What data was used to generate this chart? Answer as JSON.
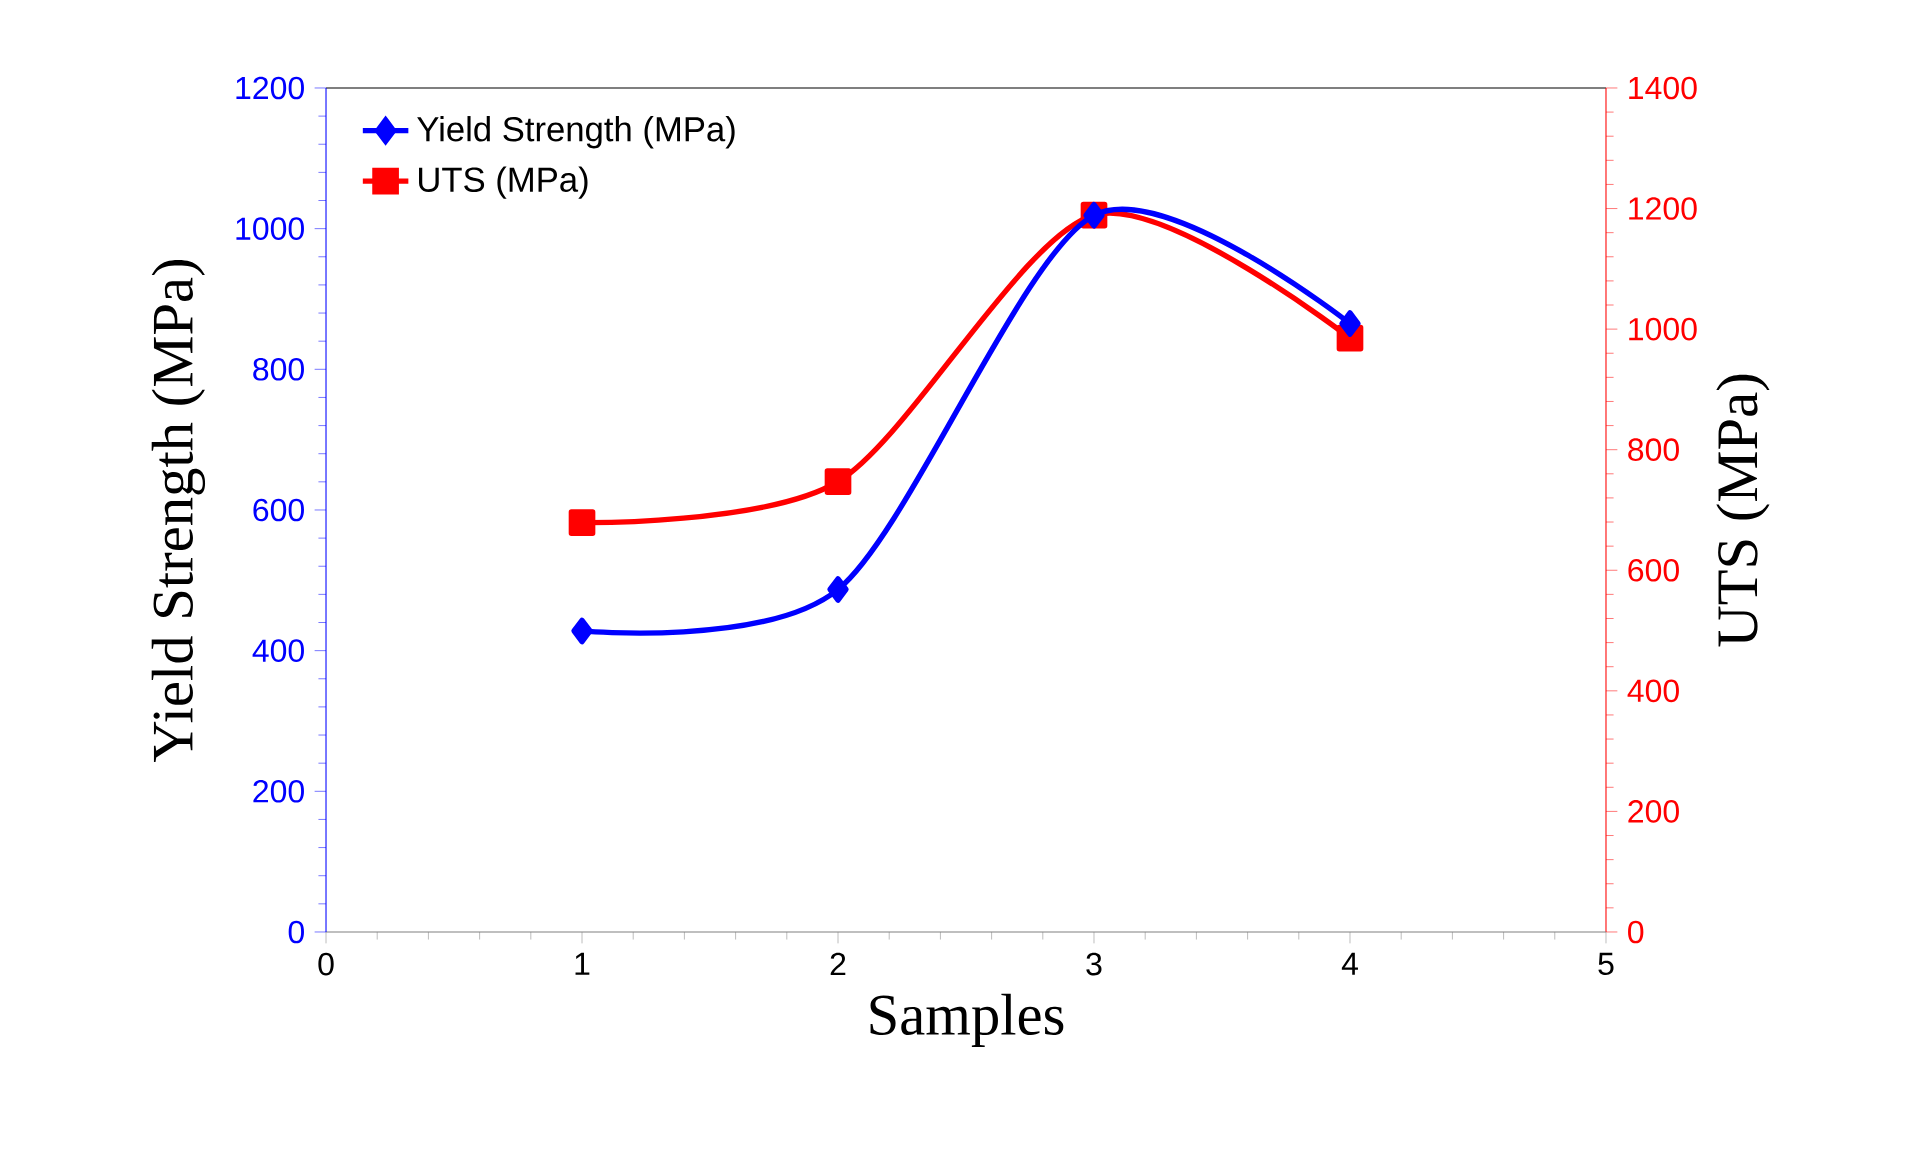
{
  "chart_data": {
    "type": "line",
    "xlabel": "Samples",
    "ylabel": "Yield Strength (MPa)",
    "y2label": "UTS (MPa)",
    "x": [
      1,
      2,
      3,
      4
    ],
    "series": [
      {
        "name": "Yield Strength (MPa)",
        "color": "#0000ff",
        "marker": "diamond",
        "values": [
          428,
          487,
          1019,
          865
        ]
      },
      {
        "name": "UTS (MPa)",
        "color": "#ff0000",
        "marker": "square",
        "axis": "y2",
        "values": [
          679,
          747,
          1189,
          985
        ]
      }
    ],
    "xlim": [
      0,
      5
    ],
    "xticks": [
      0,
      1,
      2,
      3,
      4,
      5
    ],
    "ylim": [
      0,
      1200
    ],
    "yticks": [
      0,
      200,
      400,
      600,
      800,
      1000,
      1200
    ],
    "y2lim": [
      0,
      1400
    ],
    "y2ticks": [
      0,
      200,
      400,
      600,
      800,
      1000,
      1200,
      1400
    ],
    "legend": "top left",
    "grid": false
  }
}
